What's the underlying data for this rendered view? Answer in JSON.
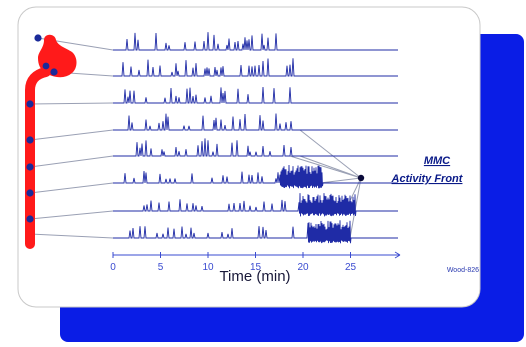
{
  "colors": {
    "shadow": "#0a1de6",
    "card": "#ffffff",
    "card_border": "#c8c8c8",
    "trace": "#1f2ba6",
    "gut": "#ff1a1a",
    "electrode": "#1a2a99",
    "leader": "#9aa0b4",
    "axis": "#3a4bd0",
    "mmc_text": "#0a1a88"
  },
  "figure": {
    "mmc_label_line1": "MMC",
    "mmc_label_line2": "Activity Front",
    "credit": "Wood-826"
  },
  "chart_data": {
    "type": "line",
    "xlabel": "Time (min)",
    "x_range": [
      0,
      30
    ],
    "x_ticks": [
      0,
      5,
      10,
      15,
      20,
      25
    ],
    "traces": [
      {
        "burst": null
      },
      {
        "burst": null
      },
      {
        "burst": null
      },
      {
        "burst": null
      },
      {
        "burst": null
      },
      {
        "burst": [
          17.5,
          22
        ]
      },
      {
        "burst": [
          19.5,
          25.5
        ]
      },
      {
        "burst": [
          20.5,
          25
        ]
      }
    ]
  }
}
